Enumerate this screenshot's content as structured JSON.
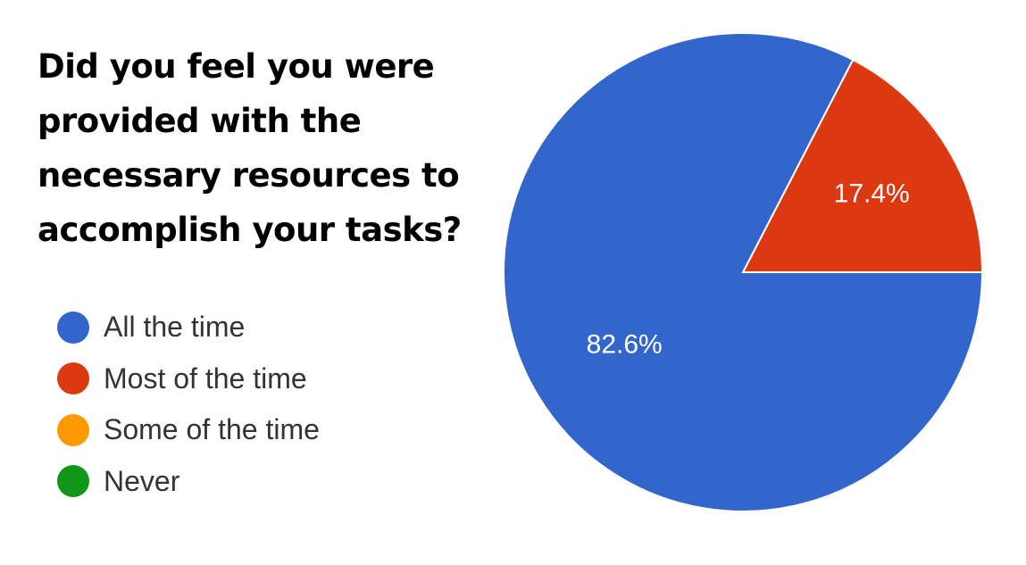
{
  "chart_data": {
    "type": "pie",
    "title": "Did you feel you were provided with the necessary resources to accomplish your tasks?",
    "categories": [
      "All the time",
      "Most of the time",
      "Some of the time",
      "Never"
    ],
    "values": [
      82.6,
      17.4,
      0,
      0
    ],
    "data_labels": [
      "82.6%",
      "17.4%",
      "",
      ""
    ],
    "colors": [
      "#3366cc",
      "#dc3912",
      "#ff9900",
      "#109618"
    ],
    "legend_position": "left"
  }
}
